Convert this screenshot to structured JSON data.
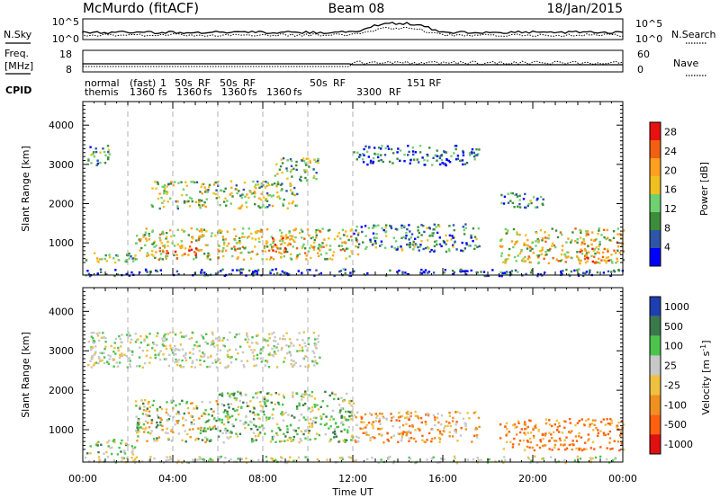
{
  "header": {
    "title": "McMurdo (fitACF)",
    "beam": "Beam 08",
    "date": "18/Jan/2015"
  },
  "noise_panel": {
    "left_label": "N.Sky",
    "right_label": "N.Search",
    "left_ticks": [
      "10^5",
      "10^0"
    ],
    "right_ticks": [
      "10^5",
      "10^0"
    ]
  },
  "freq_panel": {
    "left_label_1": "Freq.",
    "left_label_2": "[MHz]",
    "right_label": "Nave",
    "left_ticks": [
      "18",
      "8"
    ],
    "right_ticks": [
      "60",
      "0"
    ]
  },
  "cpid": {
    "label": "CPID",
    "row1": [
      "normal",
      "(fast)",
      "1",
      "50s",
      "RF",
      "50s",
      "RF",
      "50s",
      "RF",
      "151 RF"
    ],
    "row2": [
      "themis",
      "1360",
      "fs",
      "1360",
      "fs",
      "1360",
      "fs",
      "1360",
      "fs",
      "3300",
      "RF"
    ]
  },
  "colors": {
    "power_scale": [
      "#0000ff",
      "#2e55a8",
      "#3b8d3b",
      "#6fd06f",
      "#f0c020",
      "#ffa020",
      "#f06010",
      "#e81010"
    ],
    "velocity_scale": [
      "#1f3fb0",
      "#3a7a4a",
      "#4cc44c",
      "#c8c8c8",
      "#f0c040",
      "#f09020",
      "#ff6010",
      "#e01010"
    ],
    "dashed_markers": "#b0b0b0",
    "background": "#ffffff"
  },
  "chart_data": [
    {
      "type": "heatmap",
      "title": "Power",
      "xlabel": "Time UT",
      "ylabel": "Slant Range [km]",
      "colorbar_label": "Power [dB]",
      "x_ticks": [
        "00:00",
        "04:00",
        "08:00",
        "12:00",
        "16:00",
        "20:00",
        "00:00"
      ],
      "xlim_hours": [
        0,
        24
      ],
      "y_ticks": [
        1000,
        2000,
        3000,
        4000
      ],
      "ylim_km": [
        180,
        4600
      ],
      "colorbar_ticks": [
        4,
        8,
        12,
        16,
        20,
        24,
        28
      ],
      "colorbar_range": [
        0,
        30
      ],
      "dashed_time_markers_hours": [
        2,
        4,
        6,
        8,
        10,
        12
      ],
      "scatter_bands": [
        {
          "t0": 0.1,
          "t1": 2.3,
          "r0": 500,
          "r1": 800,
          "level": 0.45
        },
        {
          "t0": 0.2,
          "t1": 1.3,
          "r0": 3000,
          "r1": 3500,
          "level": 0.3
        },
        {
          "t0": 0.0,
          "t1": 24.0,
          "r0": 180,
          "r1": 360,
          "level": 0.15
        },
        {
          "t0": 2.3,
          "t1": 12.2,
          "r0": 600,
          "r1": 1400,
          "level": 0.55
        },
        {
          "t0": 3.5,
          "t1": 5.2,
          "r0": 700,
          "r1": 900,
          "level": 0.85
        },
        {
          "t0": 8.3,
          "t1": 9.5,
          "r0": 800,
          "r1": 1200,
          "level": 0.8
        },
        {
          "t0": 3.0,
          "t1": 9.5,
          "r0": 1900,
          "r1": 2600,
          "level": 0.45
        },
        {
          "t0": 8.5,
          "t1": 10.5,
          "r0": 2600,
          "r1": 3200,
          "level": 0.4
        },
        {
          "t0": 12.0,
          "t1": 17.6,
          "r0": 800,
          "r1": 1500,
          "level": 0.3
        },
        {
          "t0": 12.0,
          "t1": 17.6,
          "r0": 3000,
          "r1": 3500,
          "level": 0.2
        },
        {
          "t0": 18.5,
          "t1": 24.0,
          "r0": 500,
          "r1": 1400,
          "level": 0.55
        },
        {
          "t0": 22.0,
          "t1": 23.5,
          "r0": 500,
          "r1": 900,
          "level": 0.75
        },
        {
          "t0": 18.5,
          "t1": 20.5,
          "r0": 1900,
          "r1": 2300,
          "level": 0.3
        }
      ]
    },
    {
      "type": "heatmap",
      "title": "Velocity",
      "xlabel": "Time UT",
      "ylabel": "Slant Range [km]",
      "colorbar_label": "Velocity [m s^-1]",
      "x_ticks": [
        "00:00",
        "04:00",
        "08:00",
        "12:00",
        "16:00",
        "20:00",
        "00:00"
      ],
      "xlim_hours": [
        0,
        24
      ],
      "y_ticks": [
        1000,
        2000,
        3000,
        4000
      ],
      "ylim_km": [
        180,
        4600
      ],
      "colorbar_ticks": [
        1000,
        500,
        100,
        25,
        -25,
        -100,
        -500,
        -1000
      ],
      "dashed_time_markers_hours": [
        2,
        4,
        6,
        8,
        10,
        12
      ],
      "scatter_bands": [
        {
          "t0": 0.1,
          "t1": 2.3,
          "r0": 400,
          "r1": 800,
          "category": "positive"
        },
        {
          "t0": 2.3,
          "t1": 6.0,
          "r0": 700,
          "r1": 1800,
          "category": "mixed"
        },
        {
          "t0": 6.0,
          "t1": 12.0,
          "r0": 700,
          "r1": 2000,
          "category": "positive"
        },
        {
          "t0": 0.0,
          "t1": 24.0,
          "r0": 180,
          "r1": 350,
          "category": "ground"
        },
        {
          "t0": 12.0,
          "t1": 17.6,
          "r0": 700,
          "r1": 1500,
          "category": "negative"
        },
        {
          "t0": 18.5,
          "t1": 24.0,
          "r0": 500,
          "r1": 1300,
          "category": "negative-strong"
        },
        {
          "t0": 0.2,
          "t1": 10.5,
          "r0": 2600,
          "r1": 3500,
          "category": "ground"
        }
      ]
    }
  ]
}
